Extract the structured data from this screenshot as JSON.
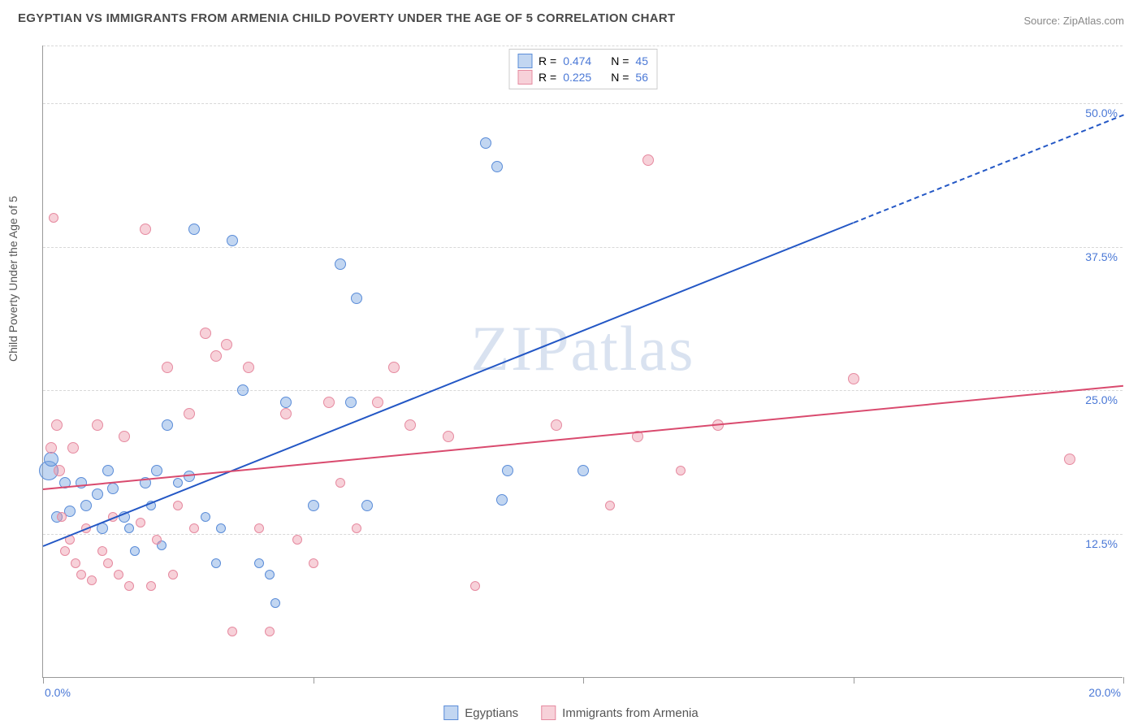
{
  "title": "EGYPTIAN VS IMMIGRANTS FROM ARMENIA CHILD POVERTY UNDER THE AGE OF 5 CORRELATION CHART",
  "source": "Source: ZipAtlas.com",
  "y_axis_label": "Child Poverty Under the Age of 5",
  "watermark": "ZIPatlas",
  "chart": {
    "type": "scatter",
    "xlim": [
      0,
      20
    ],
    "ylim": [
      0,
      55
    ],
    "x_ticks": [
      0,
      5,
      10,
      15,
      20
    ],
    "x_tick_labels": [
      "0.0%",
      "",
      "",
      "",
      "20.0%"
    ],
    "y_gridlines": [
      12.5,
      25,
      37.5,
      50,
      55
    ],
    "y_labels": [
      "12.5%",
      "25.0%",
      "37.5%",
      "50.0%"
    ],
    "background_color": "#ffffff",
    "grid_color": "#d8d8d8",
    "axis_color": "#999999",
    "value_color": "#4a78d6"
  },
  "series": [
    {
      "name": "Egyptians",
      "fill": "rgba(120,165,225,0.45)",
      "stroke": "#5a8cd8",
      "line_color": "#2357c5",
      "R": "0.474",
      "N": "45",
      "trend": {
        "x1": 0,
        "y1": 11.5,
        "x2": 20,
        "y2": 49,
        "dash_from_x": 15
      },
      "points": [
        {
          "x": 0.1,
          "y": 18,
          "r": 12
        },
        {
          "x": 0.15,
          "y": 19,
          "r": 9
        },
        {
          "x": 0.25,
          "y": 14,
          "r": 7
        },
        {
          "x": 0.4,
          "y": 17,
          "r": 7
        },
        {
          "x": 0.5,
          "y": 14.5,
          "r": 7
        },
        {
          "x": 0.7,
          "y": 17,
          "r": 7
        },
        {
          "x": 0.8,
          "y": 15,
          "r": 7
        },
        {
          "x": 1.0,
          "y": 16,
          "r": 7
        },
        {
          "x": 1.1,
          "y": 13,
          "r": 7
        },
        {
          "x": 1.2,
          "y": 18,
          "r": 7
        },
        {
          "x": 1.3,
          "y": 16.5,
          "r": 7
        },
        {
          "x": 1.5,
          "y": 14,
          "r": 7
        },
        {
          "x": 1.6,
          "y": 13,
          "r": 6
        },
        {
          "x": 1.7,
          "y": 11,
          "r": 6
        },
        {
          "x": 1.9,
          "y": 17,
          "r": 7
        },
        {
          "x": 2.0,
          "y": 15,
          "r": 6
        },
        {
          "x": 2.1,
          "y": 18,
          "r": 7
        },
        {
          "x": 2.2,
          "y": 11.5,
          "r": 6
        },
        {
          "x": 2.3,
          "y": 22,
          "r": 7
        },
        {
          "x": 2.5,
          "y": 17,
          "r": 6
        },
        {
          "x": 2.7,
          "y": 17.5,
          "r": 7
        },
        {
          "x": 2.8,
          "y": 39,
          "r": 7
        },
        {
          "x": 3.0,
          "y": 14,
          "r": 6
        },
        {
          "x": 3.2,
          "y": 10,
          "r": 6
        },
        {
          "x": 3.3,
          "y": 13,
          "r": 6
        },
        {
          "x": 3.5,
          "y": 38,
          "r": 7
        },
        {
          "x": 3.7,
          "y": 25,
          "r": 7
        },
        {
          "x": 4.0,
          "y": 10,
          "r": 6
        },
        {
          "x": 4.2,
          "y": 9,
          "r": 6
        },
        {
          "x": 4.3,
          "y": 6.5,
          "r": 6
        },
        {
          "x": 4.5,
          "y": 24,
          "r": 7
        },
        {
          "x": 5.0,
          "y": 15,
          "r": 7
        },
        {
          "x": 5.5,
          "y": 36,
          "r": 7
        },
        {
          "x": 5.7,
          "y": 24,
          "r": 7
        },
        {
          "x": 5.8,
          "y": 33,
          "r": 7
        },
        {
          "x": 6.0,
          "y": 15,
          "r": 7
        },
        {
          "x": 8.2,
          "y": 46.5,
          "r": 7
        },
        {
          "x": 8.4,
          "y": 44.5,
          "r": 7
        },
        {
          "x": 8.5,
          "y": 15.5,
          "r": 7
        },
        {
          "x": 8.6,
          "y": 18,
          "r": 7
        },
        {
          "x": 10.0,
          "y": 18,
          "r": 7
        }
      ]
    },
    {
      "name": "Immigrants from Armenia",
      "fill": "rgba(235,140,160,0.40)",
      "stroke": "#e68aa0",
      "line_color": "#d94a6e",
      "R": "0.225",
      "N": "56",
      "trend": {
        "x1": 0,
        "y1": 16.5,
        "x2": 20,
        "y2": 25.5,
        "dash_from_x": 999
      },
      "points": [
        {
          "x": 0.15,
          "y": 20,
          "r": 7
        },
        {
          "x": 0.2,
          "y": 40,
          "r": 6
        },
        {
          "x": 0.25,
          "y": 22,
          "r": 7
        },
        {
          "x": 0.3,
          "y": 18,
          "r": 7
        },
        {
          "x": 0.35,
          "y": 14,
          "r": 6
        },
        {
          "x": 0.4,
          "y": 11,
          "r": 6
        },
        {
          "x": 0.5,
          "y": 12,
          "r": 6
        },
        {
          "x": 0.55,
          "y": 20,
          "r": 7
        },
        {
          "x": 0.6,
          "y": 10,
          "r": 6
        },
        {
          "x": 0.7,
          "y": 9,
          "r": 6
        },
        {
          "x": 0.8,
          "y": 13,
          "r": 6
        },
        {
          "x": 0.9,
          "y": 8.5,
          "r": 6
        },
        {
          "x": 1.0,
          "y": 22,
          "r": 7
        },
        {
          "x": 1.1,
          "y": 11,
          "r": 6
        },
        {
          "x": 1.2,
          "y": 10,
          "r": 6
        },
        {
          "x": 1.3,
          "y": 14,
          "r": 6
        },
        {
          "x": 1.4,
          "y": 9,
          "r": 6
        },
        {
          "x": 1.5,
          "y": 21,
          "r": 7
        },
        {
          "x": 1.6,
          "y": 8,
          "r": 6
        },
        {
          "x": 1.8,
          "y": 13.5,
          "r": 6
        },
        {
          "x": 1.9,
          "y": 39,
          "r": 7
        },
        {
          "x": 2.0,
          "y": 8,
          "r": 6
        },
        {
          "x": 2.1,
          "y": 12,
          "r": 6
        },
        {
          "x": 2.3,
          "y": 27,
          "r": 7
        },
        {
          "x": 2.4,
          "y": 9,
          "r": 6
        },
        {
          "x": 2.5,
          "y": 15,
          "r": 6
        },
        {
          "x": 2.7,
          "y": 23,
          "r": 7
        },
        {
          "x": 2.8,
          "y": 13,
          "r": 6
        },
        {
          "x": 3.0,
          "y": 30,
          "r": 7
        },
        {
          "x": 3.2,
          "y": 28,
          "r": 7
        },
        {
          "x": 3.4,
          "y": 29,
          "r": 7
        },
        {
          "x": 3.5,
          "y": 4,
          "r": 6
        },
        {
          "x": 3.8,
          "y": 27,
          "r": 7
        },
        {
          "x": 4.0,
          "y": 13,
          "r": 6
        },
        {
          "x": 4.2,
          "y": 4,
          "r": 6
        },
        {
          "x": 4.5,
          "y": 23,
          "r": 7
        },
        {
          "x": 4.7,
          "y": 12,
          "r": 6
        },
        {
          "x": 5.0,
          "y": 10,
          "r": 6
        },
        {
          "x": 5.3,
          "y": 24,
          "r": 7
        },
        {
          "x": 5.5,
          "y": 17,
          "r": 6
        },
        {
          "x": 5.8,
          "y": 13,
          "r": 6
        },
        {
          "x": 6.2,
          "y": 24,
          "r": 7
        },
        {
          "x": 6.5,
          "y": 27,
          "r": 7
        },
        {
          "x": 6.8,
          "y": 22,
          "r": 7
        },
        {
          "x": 7.5,
          "y": 21,
          "r": 7
        },
        {
          "x": 8.0,
          "y": 8,
          "r": 6
        },
        {
          "x": 9.5,
          "y": 22,
          "r": 7
        },
        {
          "x": 10.5,
          "y": 15,
          "r": 6
        },
        {
          "x": 11.0,
          "y": 21,
          "r": 7
        },
        {
          "x": 11.2,
          "y": 45,
          "r": 7
        },
        {
          "x": 11.8,
          "y": 18,
          "r": 6
        },
        {
          "x": 12.5,
          "y": 22,
          "r": 7
        },
        {
          "x": 15.0,
          "y": 26,
          "r": 7
        },
        {
          "x": 19.0,
          "y": 19,
          "r": 7
        }
      ]
    }
  ],
  "legend": {
    "s1": "Egyptians",
    "s2": "Immigrants from Armenia"
  },
  "stats_labels": {
    "R": "R =",
    "N": "N ="
  }
}
